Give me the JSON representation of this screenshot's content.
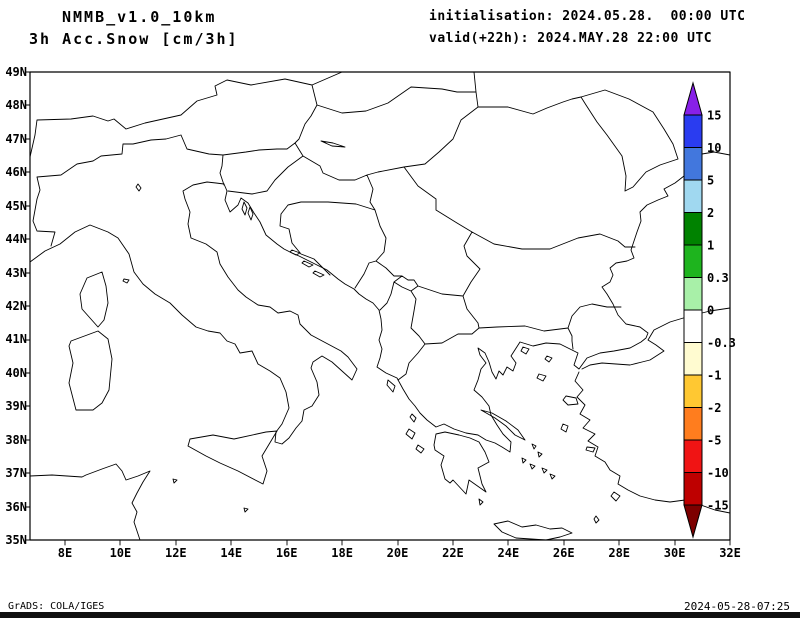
{
  "header": {
    "model": "NMMB_v1.0_10km",
    "field": "3h Acc.Snow [cm/3h]",
    "init": "initialisation: 2024.05.28.  00:00 UTC",
    "valid": "valid(+22h): 2024.MAY.28 22:00 UTC"
  },
  "axes": {
    "lat_labels": [
      "49N",
      "48N",
      "47N",
      "46N",
      "45N",
      "44N",
      "43N",
      "42N",
      "41N",
      "40N",
      "39N",
      "38N",
      "37N",
      "36N",
      "35N"
    ],
    "lon_labels": [
      "8E",
      "10E",
      "12E",
      "14E",
      "16E",
      "18E",
      "20E",
      "22E",
      "24E",
      "26E",
      "28E",
      "30E",
      "32E"
    ]
  },
  "colorbar": {
    "labels": [
      "15",
      "10",
      "5",
      "2",
      "1",
      "0.3",
      "0",
      "-0.3",
      "-1",
      "-2",
      "-5",
      "-10",
      "-15"
    ],
    "top_arrow_color": "#8820e8",
    "bottom_arrow_color": "#7d0000",
    "segment_colors": [
      "#2a3cf0",
      "#4277dd",
      "#a0d8f0",
      "#008200",
      "#1eb41e",
      "#a8f0a8",
      "#ffffff",
      "#fffbd0",
      "#ffc832",
      "#ff7d1e",
      "#f01414",
      "#be0000"
    ]
  },
  "footer": {
    "left": "GrADS: COLA/IGES",
    "right": "2024-05-28-07:25"
  },
  "chart_data": {
    "type": "heatmap",
    "title": "3h Acc.Snow [cm/3h]",
    "model": "NMMB_v1.0_10km",
    "initialisation": "2024.05.28. 00:00 UTC",
    "valid": "valid(+22h) 2024.MAY.28 22:00 UTC",
    "lon_range": [
      8,
      32
    ],
    "lat_range": [
      35,
      49
    ],
    "units": "cm/3h",
    "colorbar_levels": [
      15,
      10,
      5,
      2,
      1,
      0.3,
      0,
      -0.3,
      -1,
      -2,
      -5,
      -10,
      -15
    ],
    "shaded_regions": [],
    "note_visible_on_map": "map area is entirely unshaded (no accumulated snow plotted)"
  }
}
